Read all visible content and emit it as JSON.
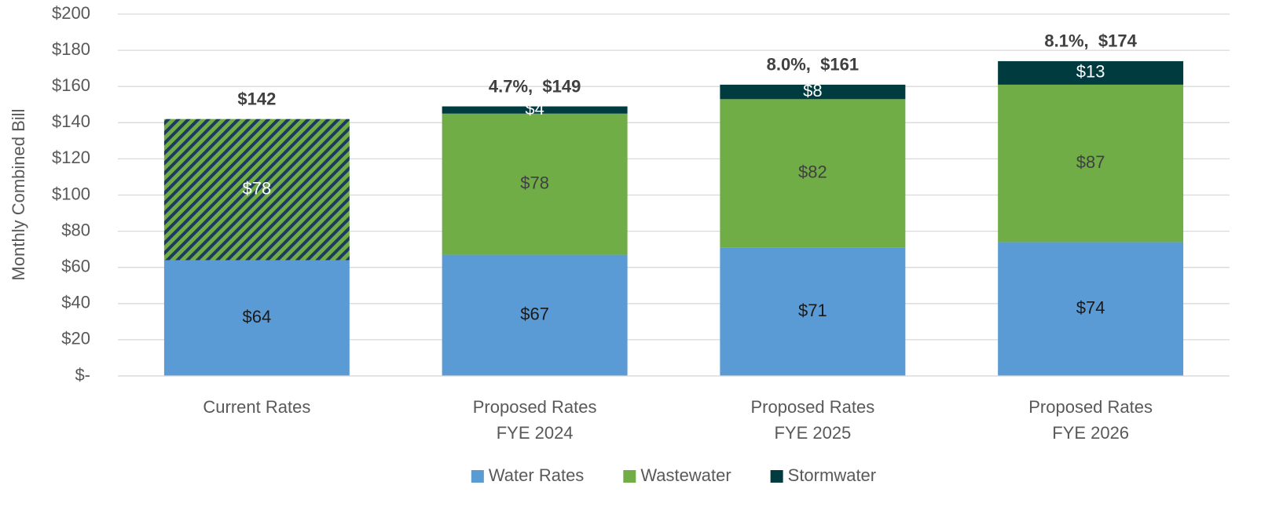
{
  "chart_data": {
    "type": "stacked_bar",
    "ylabel": "Monthly Combined Bill",
    "categories": [
      [
        "Current Rates"
      ],
      [
        "Proposed Rates",
        "FYE 2024"
      ],
      [
        "Proposed Rates",
        "FYE 2025"
      ],
      [
        "Proposed Rates",
        "FYE 2026"
      ]
    ],
    "series": [
      {
        "name": "Water Rates",
        "color": "#5b9bd5",
        "values": [
          64,
          67,
          71,
          74
        ],
        "value_labels": [
          "$64",
          "$67",
          "$71",
          "$74"
        ],
        "label_color": "#1a1a1a"
      },
      {
        "name": "Wastewater",
        "color": "#70ad47",
        "values": [
          78,
          78,
          82,
          87
        ],
        "value_labels": [
          "$78",
          "$78",
          "$82",
          "$87"
        ],
        "label_color": "#404040",
        "hatch": [
          true,
          false,
          false,
          false
        ]
      },
      {
        "name": "Stormwater",
        "color": "#003b40",
        "values": [
          null,
          4,
          8,
          13
        ],
        "value_labels": [
          null,
          "$4",
          "$8",
          "$13"
        ],
        "label_color": "#ffffff"
      }
    ],
    "annotations": [
      "$142",
      "4.7%,  $149",
      "8.0%,  $161",
      "8.1%,  $174"
    ],
    "ylim": [
      0,
      200
    ],
    "yticks": [
      {
        "value": 0,
        "label": "$-"
      },
      {
        "value": 20,
        "label": "$20"
      },
      {
        "value": 40,
        "label": "$40"
      },
      {
        "value": 60,
        "label": "$60"
      },
      {
        "value": 80,
        "label": "$80"
      },
      {
        "value": 100,
        "label": "$100"
      },
      {
        "value": 120,
        "label": "$120"
      },
      {
        "value": 140,
        "label": "$140"
      },
      {
        "value": 160,
        "label": "$160"
      },
      {
        "value": 180,
        "label": "$180"
      },
      {
        "value": 200,
        "label": "$200"
      }
    ],
    "grid": true,
    "legend": "bottom"
  }
}
